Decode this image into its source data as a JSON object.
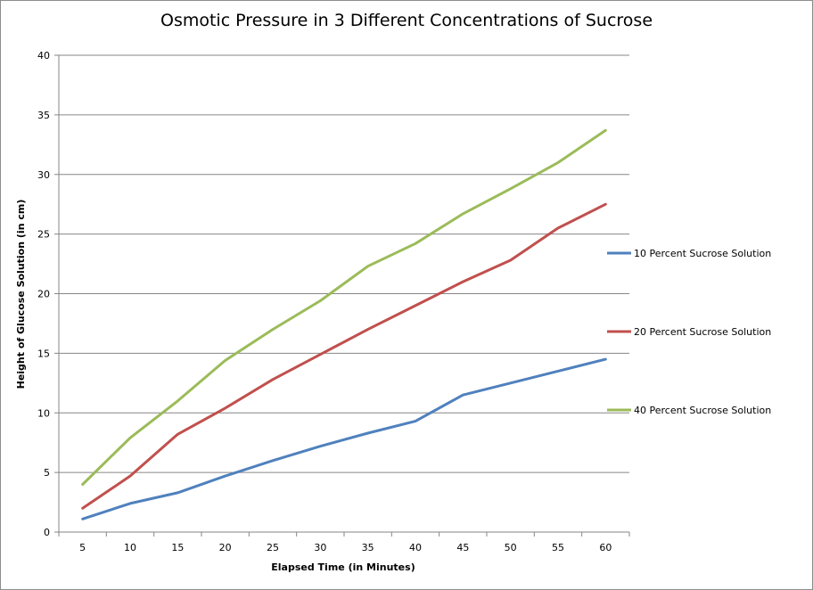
{
  "chart_data": {
    "type": "line",
    "title": "Osmotic Pressure in 3 Different Concentrations of Sucrose",
    "xlabel": "Elapsed Time (in Minutes)",
    "ylabel": "Height of Glucose Solution (in cm)",
    "categories": [
      5,
      10,
      15,
      20,
      25,
      30,
      35,
      40,
      45,
      50,
      55,
      60
    ],
    "ylim": [
      0,
      40
    ],
    "yticks": [
      0,
      5,
      10,
      15,
      20,
      25,
      30,
      35,
      40
    ],
    "grid": "horizontal",
    "legend_position": "right",
    "series": [
      {
        "name": "10 Percent Sucrose Solution",
        "color": "#4f81bd",
        "values": [
          1.1,
          2.4,
          3.3,
          4.7,
          6.0,
          7.2,
          8.3,
          9.3,
          11.5,
          12.5,
          13.5,
          14.5
        ]
      },
      {
        "name": "20 Percent Sucrose Solution",
        "color": "#c0504d",
        "values": [
          2.0,
          4.7,
          8.2,
          10.4,
          12.8,
          14.9,
          17.0,
          19.0,
          21.0,
          22.8,
          25.5,
          27.5
        ]
      },
      {
        "name": "40 Percent Sucrose Solution",
        "color": "#9bbb59",
        "values": [
          4.0,
          7.9,
          11.0,
          14.4,
          17.0,
          19.4,
          22.3,
          24.2,
          26.7,
          28.8,
          31.0,
          33.7
        ]
      }
    ]
  }
}
